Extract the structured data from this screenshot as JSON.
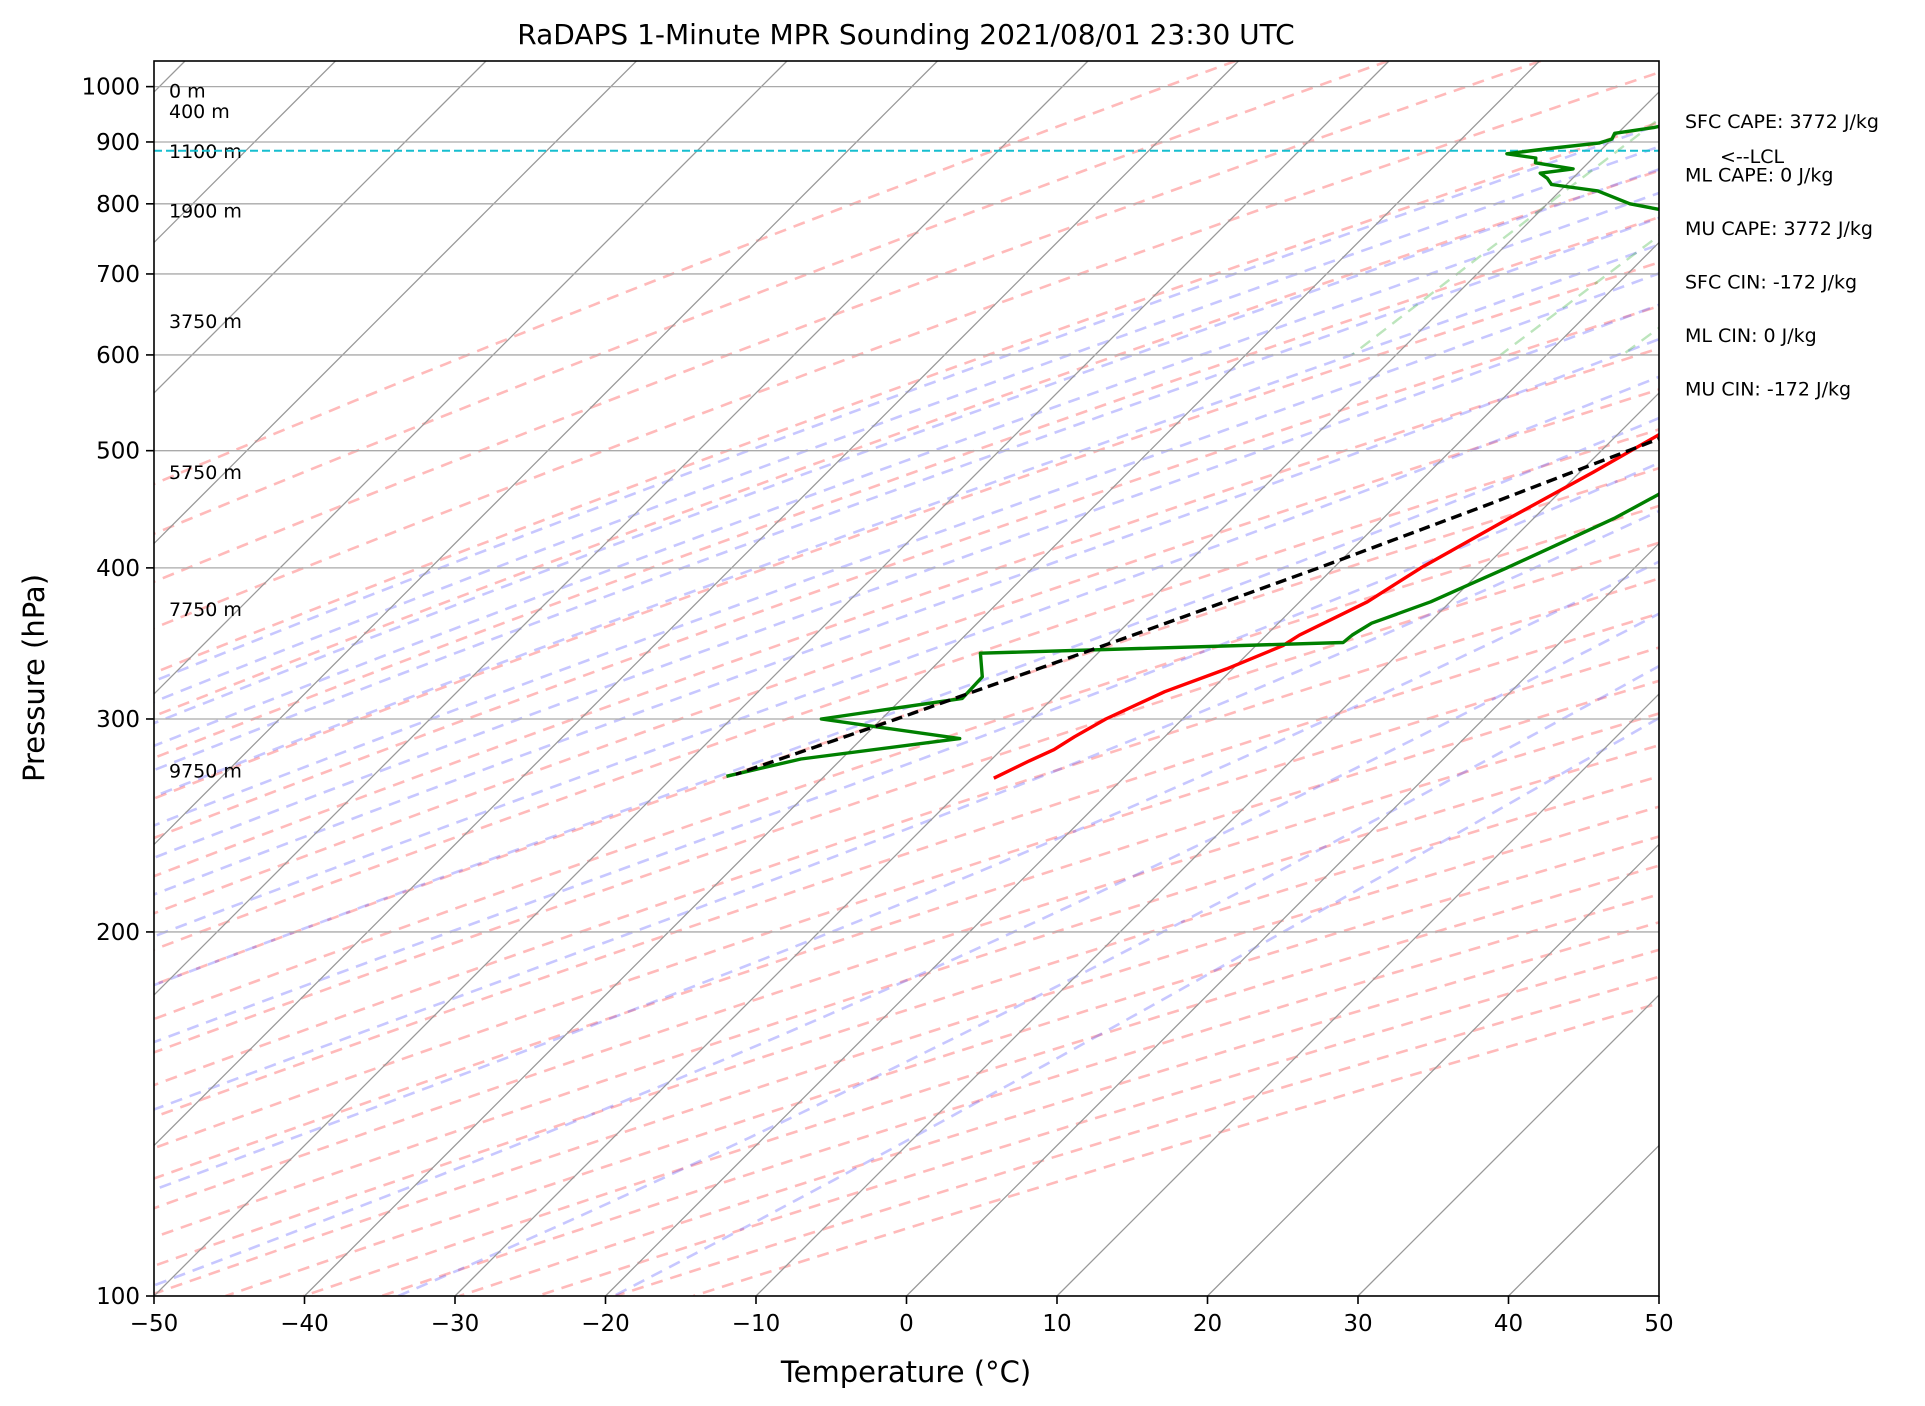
{
  "chart_data": {
    "type": "line",
    "title": "RaDAPS 1-Minute MPR Sounding 2021/08/01 23:30 UTC",
    "xlabel": "Temperature (°C)",
    "ylabel": "Pressure (hPa)",
    "xlim": [
      -50,
      50
    ],
    "ylim": [
      1050,
      100
    ],
    "y_scale": "log",
    "x_ticks": [
      -50,
      -40,
      -30,
      -20,
      -10,
      0,
      10,
      20,
      30,
      40,
      50
    ],
    "x_tick_labels": [
      "−50",
      "−40",
      "−30",
      "−20",
      "−10",
      "0",
      "10",
      "20",
      "30",
      "40",
      "50"
    ],
    "y_ticks": [
      100,
      200,
      300,
      400,
      500,
      600,
      700,
      800,
      900,
      1000
    ],
    "y_tick_labels": [
      "100",
      "200",
      "300",
      "400",
      "500",
      "600",
      "700",
      "800",
      "900",
      "1000"
    ],
    "grid": true,
    "skew": true,
    "series": [
      {
        "color": "#ff0000",
        "values": [
          [
            993,
            29.3
          ],
          [
            990,
            26.5
          ],
          [
            982,
            25.7
          ],
          [
            975,
            25.0
          ],
          [
            968,
            24.5
          ],
          [
            962,
            26.0
          ],
          [
            955,
            25.3
          ],
          [
            945,
            26.2
          ],
          [
            930,
            28.4
          ],
          [
            915,
            29.2
          ],
          [
            900,
            29.5
          ],
          [
            885,
            29.4
          ],
          [
            870,
            28.0
          ],
          [
            855,
            26.0
          ],
          [
            840,
            25.3
          ],
          [
            825,
            24.2
          ],
          [
            810,
            23.3
          ],
          [
            800,
            22.9
          ],
          [
            790,
            20.8
          ],
          [
            775,
            19.5
          ],
          [
            760,
            18.0
          ],
          [
            745,
            16.0
          ],
          [
            730,
            14.4
          ],
          [
            670,
            6.6
          ],
          [
            600,
            0.4
          ],
          [
            560,
            -4.4
          ],
          [
            520,
            -7.0
          ],
          [
            480,
            -9.1
          ],
          [
            440,
            -11.6
          ],
          [
            400,
            -14.2
          ],
          [
            375,
            -15.5
          ],
          [
            352,
            -17.8
          ],
          [
            345,
            -18.2
          ],
          [
            330,
            -20.4
          ],
          [
            316,
            -23.0
          ],
          [
            300,
            -25.1
          ],
          [
            290,
            -26.0
          ],
          [
            283,
            -26.5
          ],
          [
            277,
            -27.4
          ],
          [
            268,
            -28.6
          ]
        ]
      },
      {
        "color": "#008000",
        "values": [
          [
            993,
            21.5
          ],
          [
            990,
            16.0
          ],
          [
            985,
            10.0
          ],
          [
            975,
            3.0
          ],
          [
            968,
            -6.0
          ],
          [
            962,
            -15.0
          ],
          [
            955,
            -20.0
          ],
          [
            940,
            -26.0
          ],
          [
            925,
            -28.0
          ],
          [
            915,
            -30.2
          ],
          [
            905,
            -30.0
          ],
          [
            898,
            -30.6
          ],
          [
            888,
            -33.8
          ],
          [
            880,
            -36.0
          ],
          [
            873,
            -33.8
          ],
          [
            865,
            -33.5
          ],
          [
            855,
            -30.6
          ],
          [
            848,
            -32.5
          ],
          [
            840,
            -31.7
          ],
          [
            830,
            -31.0
          ],
          [
            820,
            -27.5
          ],
          [
            800,
            -24.5
          ],
          [
            780,
            -19.0
          ],
          [
            760,
            0.0
          ],
          [
            740,
            14.4
          ],
          [
            720,
            11.5
          ],
          [
            700,
            10.8
          ],
          [
            680,
            9.2
          ],
          [
            655,
            8.2
          ],
          [
            640,
            7.6
          ],
          [
            605,
            5.3
          ],
          [
            570,
            4.0
          ],
          [
            545,
            2.5
          ],
          [
            520,
            -1.0
          ],
          [
            480,
            -2.7
          ],
          [
            460,
            -3.3
          ],
          [
            440,
            -4.6
          ],
          [
            420,
            -6.5
          ],
          [
            400,
            -8.5
          ],
          [
            390,
            -9.6
          ],
          [
            375,
            -11.3
          ],
          [
            360,
            -13.8
          ],
          [
            352,
            -14.3
          ],
          [
            347,
            -14.4
          ],
          [
            340,
            -37.8
          ],
          [
            325,
            -36.1
          ],
          [
            312,
            -36.0
          ],
          [
            300,
            -44.0
          ],
          [
            289,
            -33.5
          ],
          [
            278,
            -42.7
          ],
          [
            269,
            -46.5
          ]
        ]
      },
      {
        "color": "#000000",
        "dashed": true,
        "values": [
          [
            993,
            29.3
          ],
          [
            970,
            26.0
          ],
          [
            945,
            23.8
          ],
          [
            915,
            21.2
          ],
          [
            885,
            19.0
          ],
          [
            850,
            17.5
          ],
          [
            800,
            15.0
          ],
          [
            750,
            12.3
          ],
          [
            700,
            9.2
          ],
          [
            650,
            5.6
          ],
          [
            600,
            1.6
          ],
          [
            550,
            -3.0
          ],
          [
            500,
            -8.2
          ],
          [
            450,
            -14.1
          ],
          [
            400,
            -21.0
          ],
          [
            350,
            -29.2
          ],
          [
            300,
            -39.0
          ],
          [
            270,
            -46.0
          ]
        ]
      }
    ],
    "height_labels": [
      "9750 m",
      "7750 m",
      "5750 m",
      "3750 m",
      "1900 m",
      "1100 m",
      "400 m",
      "0 m"
    ],
    "height_pressures": [
      272,
      370,
      480,
      640,
      790,
      885,
      955,
      993
    ],
    "lcl_label": "<--LCL",
    "lcl_pressure": 885,
    "stats": [
      "SFC CAPE: 3772 J/kg",
      "ML CAPE: 0 J/kg",
      "MU CAPE: 3772 J/kg",
      "SFC CIN: -172 J/kg",
      "ML CIN: 0 J/kg",
      "MU CIN: -172 J/kg"
    ]
  }
}
